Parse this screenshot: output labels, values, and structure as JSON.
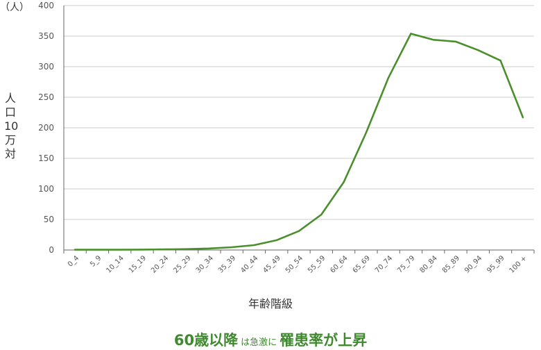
{
  "chart_data": {
    "type": "line",
    "unit_label": "（人）",
    "ylabel": "人口10万対",
    "xlabel": "年齢階級",
    "ylim": [
      0,
      400
    ],
    "yticks": [
      0,
      50,
      100,
      150,
      200,
      250,
      300,
      350,
      400
    ],
    "grid": true,
    "categories": [
      "0_4",
      "5_9",
      "10_14",
      "15_19",
      "20_24",
      "25_29",
      "30_34",
      "35_39",
      "40_44",
      "45_49",
      "50_54",
      "55_59",
      "60_64",
      "65_69",
      "70_74",
      "75_79",
      "80_84",
      "85_89",
      "90_94",
      "95_99",
      "100 +"
    ],
    "series": [
      {
        "color": "#4a8f2c",
        "values": [
          0.5,
          0.5,
          0.5,
          0.7,
          1,
          1.5,
          2.5,
          4.5,
          8,
          16,
          31,
          58,
          111,
          192,
          282,
          354,
          344,
          341,
          327,
          310,
          217
        ]
      }
    ]
  },
  "caption": {
    "part1": "60歳以降",
    "part2": "は急激に",
    "part3": "罹患率が上昇"
  }
}
